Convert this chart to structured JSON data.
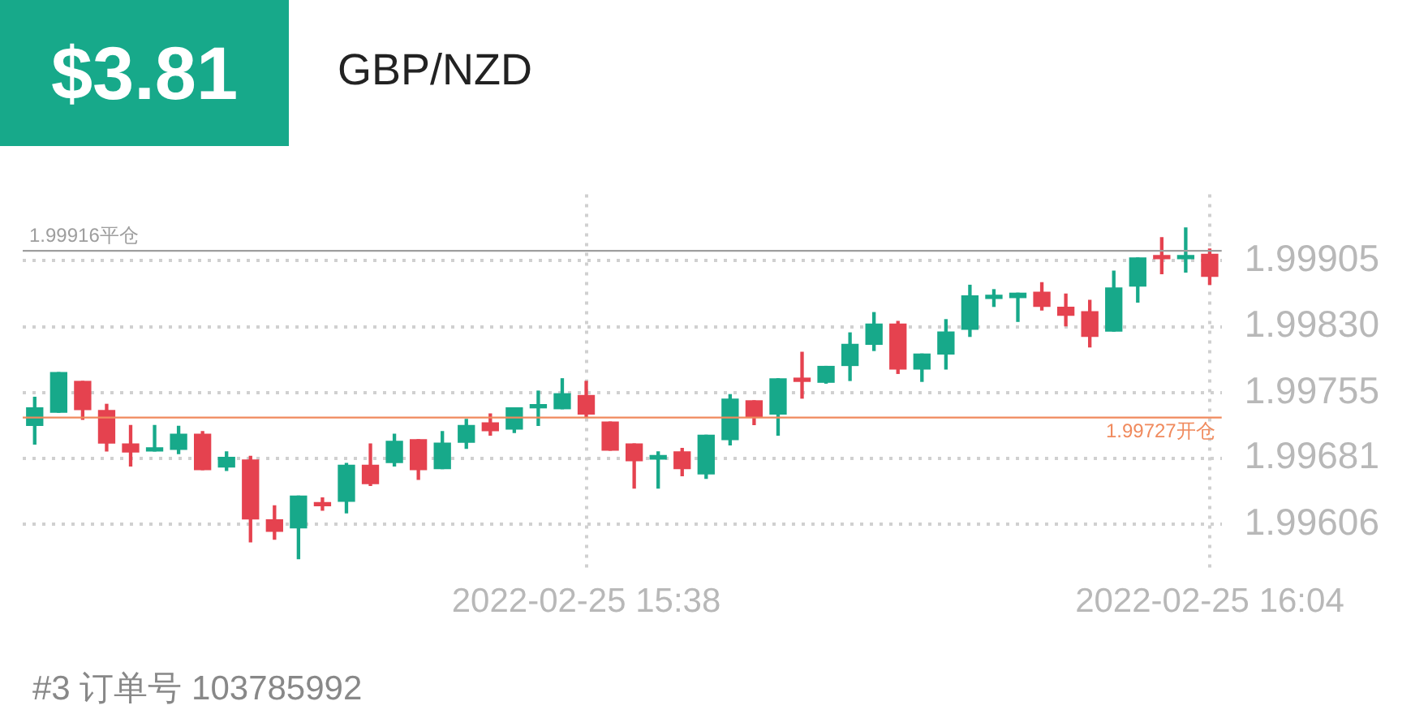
{
  "chart_data": {
    "type": "candlestick",
    "title": "GBP/NZD",
    "annotations": [
      "$3.81",
      "#3  订单号 103785992"
    ],
    "categories": [
      null,
      null,
      null,
      null,
      null,
      null,
      null,
      null,
      null,
      null,
      null,
      null,
      null,
      null,
      null,
      null,
      null,
      null,
      null,
      null,
      null,
      null,
      null,
      "2022-02-25 15:38",
      null,
      null,
      null,
      null,
      null,
      null,
      null,
      null,
      null,
      null,
      null,
      null,
      null,
      null,
      null,
      null,
      null,
      null,
      null,
      null,
      null,
      null,
      null,
      null,
      null,
      "2022-02-25 16:04"
    ],
    "ohlc": [
      [
        1.99718,
        1.9975,
        1.99697,
        1.99738
      ],
      [
        1.99733,
        1.99778,
        1.99733,
        1.99778
      ],
      [
        1.99768,
        1.99768,
        1.99725,
        1.99736
      ],
      [
        1.99735,
        1.99742,
        1.99689,
        1.99698
      ],
      [
        1.99697,
        1.99718,
        1.99672,
        1.99688
      ],
      [
        1.99689,
        1.99718,
        1.99689,
        1.99691
      ],
      [
        1.99691,
        1.99717,
        1.99686,
        1.99708
      ],
      [
        1.99708,
        1.99711,
        1.99668,
        1.99668
      ],
      [
        1.99671,
        1.99688,
        1.99667,
        1.99682
      ],
      [
        1.99679,
        1.99683,
        1.99586,
        1.99612
      ],
      [
        1.99611,
        1.99627,
        1.99589,
        1.99598
      ],
      [
        1.99602,
        1.99638,
        1.99567,
        1.99638
      ],
      [
        1.99629,
        1.99636,
        1.99622,
        1.99627
      ],
      [
        1.99632,
        1.99675,
        1.99619,
        1.99673
      ],
      [
        1.99673,
        1.99697,
        1.9965,
        1.99652
      ],
      [
        1.99676,
        1.99708,
        1.99672,
        1.997
      ],
      [
        1.99702,
        1.99702,
        1.99657,
        1.99668
      ],
      [
        1.99669,
        1.99711,
        1.99669,
        1.99698
      ],
      [
        1.99699,
        1.99725,
        1.99692,
        1.99718
      ],
      [
        1.99721,
        1.99731,
        1.99707,
        1.99712
      ],
      [
        1.99714,
        1.99738,
        1.9971,
        1.99738
      ],
      [
        1.99738,
        1.99757,
        1.99718,
        1.9974
      ],
      [
        1.99737,
        1.99771,
        1.99737,
        1.99754
      ],
      [
        1.99752,
        1.99768,
        1.99728,
        1.99731
      ],
      [
        1.99722,
        1.99722,
        1.9969,
        1.9969
      ],
      [
        1.99697,
        1.99697,
        1.99647,
        1.99678
      ],
      [
        1.9968,
        1.99688,
        1.99647,
        1.99684
      ],
      [
        1.99688,
        1.99692,
        1.99661,
        1.99669
      ],
      [
        1.99663,
        1.99707,
        1.99658,
        1.99707
      ],
      [
        1.99702,
        1.99753,
        1.99696,
        1.99748
      ],
      [
        1.99746,
        1.99746,
        1.99719,
        1.99728
      ],
      [
        1.99731,
        1.99771,
        1.99707,
        1.99771
      ],
      [
        1.99771,
        1.99801,
        1.99749,
        1.99768
      ],
      [
        1.99767,
        1.99785,
        1.99766,
        1.99785
      ],
      [
        1.99786,
        1.99823,
        1.99769,
        1.9981
      ],
      [
        1.9981,
        1.99846,
        1.99803,
        1.99833
      ],
      [
        1.99833,
        1.99836,
        1.99777,
        1.99782
      ],
      [
        1.99782,
        1.99799,
        1.99768,
        1.99799
      ],
      [
        1.99799,
        1.99838,
        1.99782,
        1.99824
      ],
      [
        1.99827,
        1.99877,
        1.99819,
        1.99865
      ],
      [
        1.99862,
        1.99872,
        1.99853,
        1.99864
      ],
      [
        1.99863,
        1.99868,
        1.99836,
        1.99868
      ],
      [
        1.99869,
        1.9988,
        1.99849,
        1.99853
      ],
      [
        1.99852,
        1.99867,
        1.99831,
        1.99843
      ],
      [
        1.99847,
        1.9986,
        1.99807,
        1.99819
      ],
      [
        1.99825,
        1.99893,
        1.99825,
        1.99874
      ],
      [
        1.99876,
        1.99908,
        1.99858,
        1.99908
      ],
      [
        1.99909,
        1.99931,
        1.9989,
        1.99907
      ],
      [
        1.99907,
        1.99942,
        1.99892,
        1.99909
      ],
      [
        1.99912,
        1.99918,
        1.99878,
        1.99887
      ]
    ],
    "colors": [
      "#17a98a",
      "#17a98a",
      "#e5424f",
      "#e5424f",
      "#e5424f",
      "#17a98a",
      "#17a98a",
      "#e5424f",
      "#17a98a",
      "#e5424f",
      "#e5424f",
      "#17a98a",
      "#e5424f",
      "#17a98a",
      "#e5424f",
      "#17a98a",
      "#e5424f",
      "#17a98a",
      "#17a98a",
      "#e5424f",
      "#17a98a",
      "#17a98a",
      "#17a98a",
      "#e5424f",
      "#e5424f",
      "#e5424f",
      "#17a98a",
      "#e5424f",
      "#17a98a",
      "#17a98a",
      "#e5424f",
      "#17a98a",
      "#e5424f",
      "#17a98a",
      "#17a98a",
      "#17a98a",
      "#e5424f",
      "#17a98a",
      "#17a98a",
      "#17a98a",
      "#17a98a",
      "#17a98a",
      "#e5424f",
      "#e5424f",
      "#e5424f",
      "#17a98a",
      "#17a98a",
      "#e5424f",
      "#17a98a",
      "#e5424f"
    ],
    "ylim": [
      1.99555,
      1.9998
    ],
    "yticks": [
      1.99606,
      1.99681,
      1.99755,
      {
        "value": 1.9983,
        "label": "1.99830"
      },
      1.99905
    ],
    "ref_lines": [
      {
        "axis": "y",
        "value": 1.99916,
        "label": "1.99916平仓",
        "color": "#9e9e9e"
      },
      {
        "axis": "y",
        "value": 1.99727,
        "label": "1.99727开仓",
        "color": "#f08a5d"
      }
    ],
    "grid": true,
    "legend": false
  }
}
